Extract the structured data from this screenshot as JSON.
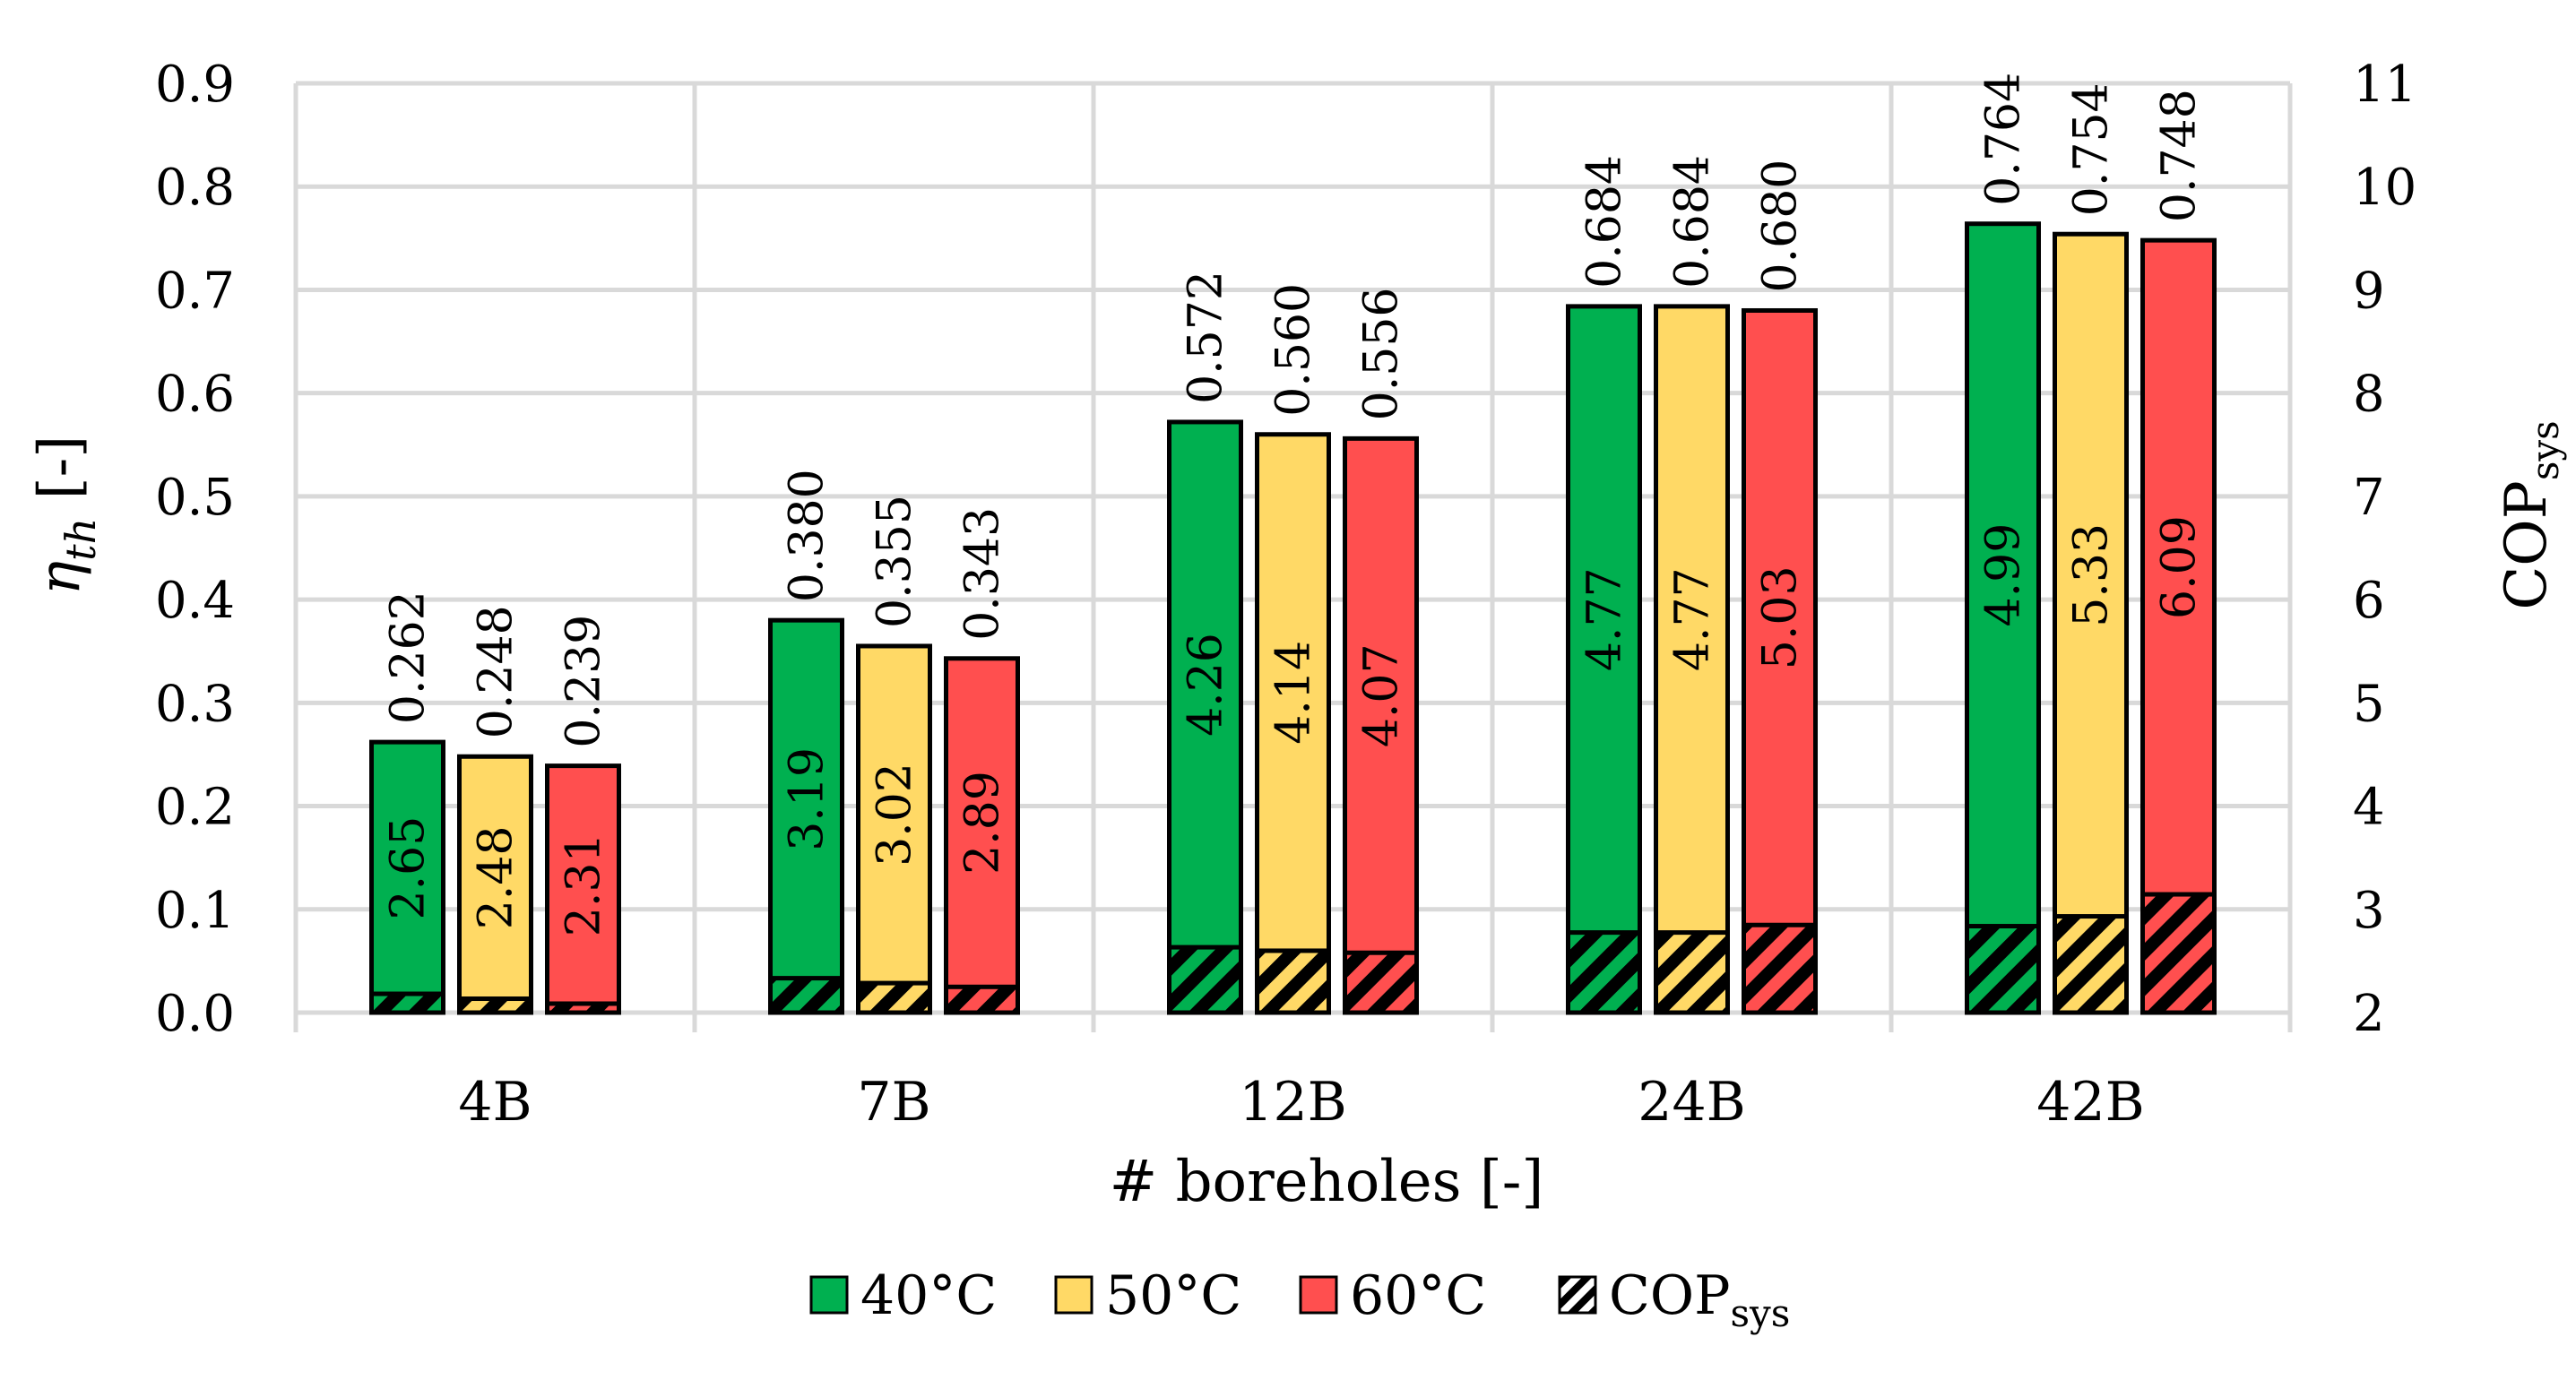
{
  "chart_data": {
    "type": "bar",
    "categories": [
      "4B",
      "7B",
      "12B",
      "24B",
      "42B"
    ],
    "xlabel": "# boreholes [-]",
    "ylabel": {
      "main": "η",
      "sub": "th",
      "suffix": " [-]"
    },
    "y2label": {
      "main": "COP",
      "sub": "sys"
    },
    "ylim": [
      0,
      0.9
    ],
    "yticks": [
      "0.0",
      "0.1",
      "0.2",
      "0.3",
      "0.4",
      "0.5",
      "0.6",
      "0.7",
      "0.8",
      "0.9"
    ],
    "y2lim": [
      2,
      11
    ],
    "y2ticks": [
      "2",
      "3",
      "4",
      "5",
      "6",
      "7",
      "8",
      "9",
      "10",
      "11"
    ],
    "series": [
      {
        "name": "40°C",
        "color": "#00b050",
        "values": [
          0.262,
          0.38,
          0.572,
          0.684,
          0.764
        ],
        "labels": [
          "0.262",
          "0.380",
          "0.572",
          "0.684",
          "0.764"
        ],
        "cop": [
          2.65,
          3.19,
          4.26,
          4.77,
          4.99
        ],
        "cop_labels": [
          "2.65",
          "3.19",
          "4.26",
          "4.77",
          "4.99"
        ]
      },
      {
        "name": "50°C",
        "color": "#ffd966",
        "values": [
          0.248,
          0.355,
          0.56,
          0.684,
          0.754
        ],
        "labels": [
          "0.248",
          "0.355",
          "0.560",
          "0.684",
          "0.754"
        ],
        "cop": [
          2.48,
          3.02,
          4.14,
          4.77,
          5.33
        ],
        "cop_labels": [
          "2.48",
          "3.02",
          "4.14",
          "4.77",
          "5.33"
        ]
      },
      {
        "name": "60°C",
        "color": "#ff4f4f",
        "values": [
          0.239,
          0.343,
          0.556,
          0.68,
          0.748
        ],
        "labels": [
          "0.239",
          "0.343",
          "0.556",
          "0.680",
          "0.748"
        ],
        "cop": [
          2.31,
          2.89,
          4.07,
          5.03,
          6.09
        ],
        "cop_labels": [
          "2.31",
          "2.89",
          "4.07",
          "5.03",
          "6.09"
        ]
      }
    ],
    "legend": {
      "items": [
        "40°C",
        "50°C",
        "60°C"
      ],
      "cop_item": {
        "main": "COP",
        "sub": "sys"
      },
      "position": "bottom"
    },
    "grid": true
  }
}
